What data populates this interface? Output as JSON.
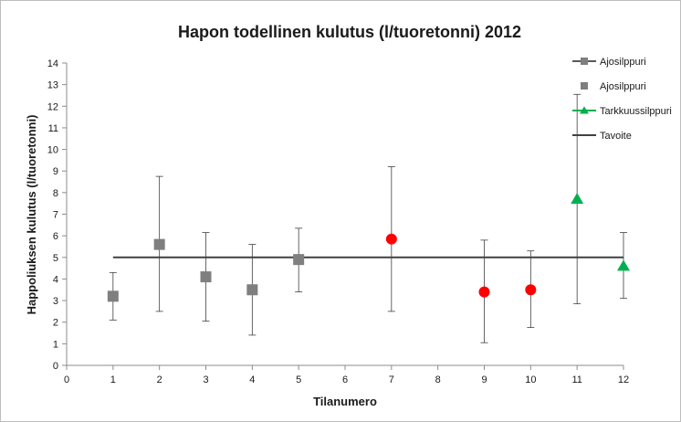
{
  "chart_data": {
    "type": "scatter",
    "title": "Hapon todellinen kulutus (l/tuoretonni) 2012",
    "xlabel": "Tilanumero",
    "ylabel": "Happoliuksen kulutus (l/tuoretonni)",
    "xlim": [
      0,
      12
    ],
    "ylim": [
      0,
      14
    ],
    "x_ticks": [
      0,
      1,
      2,
      3,
      4,
      5,
      6,
      7,
      8,
      9,
      10,
      11,
      12
    ],
    "y_ticks": [
      0,
      1,
      2,
      3,
      4,
      5,
      6,
      7,
      8,
      9,
      10,
      11,
      12,
      13,
      14
    ],
    "grid": false,
    "legend_position": "top-right",
    "legend": [
      {
        "label": "Ajosilppuri",
        "marker": "line-square",
        "color": "#7f7f7f"
      },
      {
        "label": "Ajosilppuri",
        "marker": "square",
        "color": "#7f7f7f"
      },
      {
        "label": "Tarkkuussilppuri",
        "marker": "line-triangle",
        "color": "#00b050"
      },
      {
        "label": "Tavoite",
        "marker": "line",
        "color": "#404040"
      }
    ],
    "series": [
      {
        "marker": "square",
        "color": "#7f7f7f",
        "points": [
          {
            "x": 1,
            "y": 3.2,
            "low": 2.1,
            "high": 4.3
          },
          {
            "x": 2,
            "y": 5.6,
            "low": 2.5,
            "high": 8.75
          },
          {
            "x": 3,
            "y": 4.1,
            "low": 2.05,
            "high": 6.15
          },
          {
            "x": 4,
            "y": 3.5,
            "low": 1.4,
            "high": 5.6
          },
          {
            "x": 5,
            "y": 4.9,
            "low": 3.4,
            "high": 6.35
          }
        ]
      },
      {
        "marker": "circle",
        "color": "#ff0000",
        "points": [
          {
            "x": 7,
            "y": 5.85,
            "low": 2.5,
            "high": 9.2
          },
          {
            "x": 9,
            "y": 3.4,
            "low": 1.05,
            "high": 5.8
          },
          {
            "x": 10,
            "y": 3.5,
            "low": 1.75,
            "high": 5.3
          }
        ]
      },
      {
        "name": "Tarkkuussilppuri",
        "marker": "triangle",
        "color": "#00b050",
        "points": [
          {
            "x": 11,
            "y": 7.7,
            "low": 2.85,
            "high": 12.55
          },
          {
            "x": 12,
            "y": 4.6,
            "low": 3.1,
            "high": 6.15
          }
        ]
      },
      {
        "name": "Tavoite",
        "marker": "line",
        "color": "#404040",
        "points": [
          {
            "x": 1,
            "y": 5
          },
          {
            "x": 12,
            "y": 5
          }
        ]
      }
    ]
  }
}
